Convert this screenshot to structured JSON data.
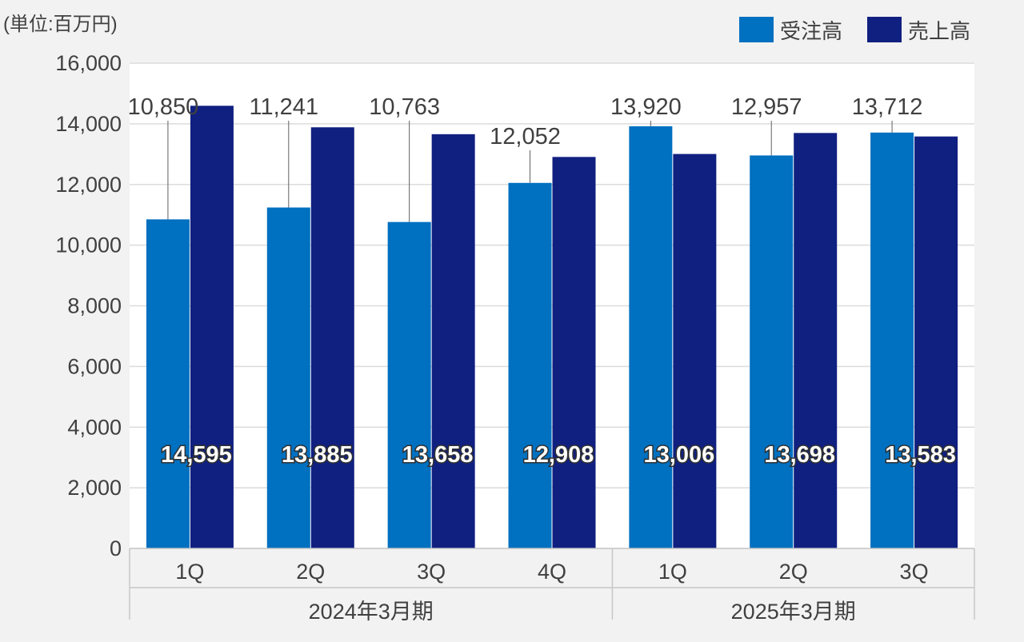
{
  "chart_data": {
    "type": "bar",
    "unit_label": "(単位:百万円)",
    "ylim": [
      0,
      16000
    ],
    "yticks": [
      "0",
      "2,000",
      "4,000",
      "6,000",
      "8,000",
      "10,000",
      "12,000",
      "14,000",
      "16,000"
    ],
    "ytick_values": [
      0,
      2000,
      4000,
      6000,
      8000,
      10000,
      12000,
      14000,
      16000
    ],
    "grid": true,
    "legend_position": "top-right",
    "categories": [
      "1Q",
      "2Q",
      "3Q",
      "4Q",
      "1Q",
      "2Q",
      "3Q"
    ],
    "groups": [
      {
        "label": "2024年3月期",
        "count": 4
      },
      {
        "label": "2025年3月期",
        "count": 3
      }
    ],
    "series": [
      {
        "name": "受注高",
        "color": "#0070c0",
        "values": [
          10850,
          11241,
          10763,
          12052,
          13920,
          12957,
          13712
        ],
        "labels": [
          "10,850",
          "11,241",
          "10,763",
          "12,052",
          "13,920",
          "12,957",
          "13,712"
        ]
      },
      {
        "name": "売上高",
        "color": "#102080",
        "values": [
          14595,
          13885,
          13658,
          12908,
          13006,
          13698,
          13583
        ],
        "labels": [
          "14,595",
          "13,885",
          "13,658",
          "12,908",
          "13,006",
          "13,698",
          "13,583"
        ]
      }
    ]
  }
}
